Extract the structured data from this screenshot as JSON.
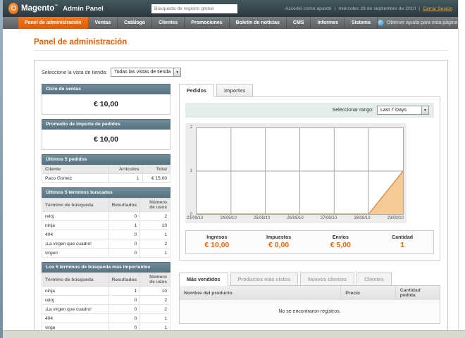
{
  "header": {
    "logo_text": "Magento",
    "logo_tm": "™",
    "logo_suffix": "Admin Panel",
    "search_placeholder": "Búsqueda de registro global",
    "logged_in": "Accedió como apardo",
    "sep": "|",
    "date": "miércoles 29 de septiembre de 2010",
    "logout": "Cerrar Sesión"
  },
  "nav": {
    "items": [
      "Panel de administración",
      "Ventas",
      "Catálogo",
      "Clientes",
      "Promociones",
      "Boletín de noticias",
      "CMS",
      "Informes",
      "Sistema"
    ],
    "active": "Panel de administración",
    "help": "Obtener ayuda para esta página"
  },
  "page": {
    "title": "Panel de administración"
  },
  "store_switcher": {
    "label": "Seleccione la vista de tienda:",
    "value": "Todas las vistas de tienda"
  },
  "sidebar": {
    "sales_box": {
      "title": "Ciclo de ventas",
      "value": "€ 10,00"
    },
    "avg_box": {
      "title": "Promedio de importe de pedidos",
      "value": "€ 10,00"
    },
    "last_orders": {
      "title": "Últimos 5 pedidos",
      "columns": [
        "Cliente",
        "Artículos",
        "Total"
      ],
      "rows": [
        [
          "Paco Gomez",
          "1",
          "€ 15,00"
        ]
      ]
    },
    "last_terms": {
      "title": "Últimos 5 términos buscados",
      "columns": [
        "Término de búsqueda",
        "Resultados",
        "Número de usos"
      ],
      "rows": [
        [
          "reloj",
          "0",
          "2"
        ],
        [
          "ninja",
          "1",
          "10"
        ],
        [
          "404",
          "0",
          "1"
        ],
        [
          "¡La virgen que cuadro!",
          "0",
          "2"
        ],
        [
          "virgen",
          "0",
          "1"
        ]
      ]
    },
    "top_terms": {
      "title": "Los 5 términos de búsqueda más importantes",
      "columns": [
        "Término de búsqueda",
        "Resultados",
        "Número de usos"
      ],
      "rows": [
        [
          "ninja",
          "1",
          "10"
        ],
        [
          "reloj",
          "0",
          "2"
        ],
        [
          "¡La virgen que cuadro!",
          "0",
          "2"
        ],
        [
          "404",
          "0",
          "1"
        ],
        [
          "virge",
          "0",
          "1"
        ]
      ]
    }
  },
  "dashboard": {
    "chart_tabs": [
      {
        "label": "Pedidos",
        "active": true,
        "enabled": true
      },
      {
        "label": "Importes",
        "active": false,
        "enabled": true
      }
    ],
    "range_label": "Seleccionar rango:",
    "range_value": "Last 7 Days",
    "totals": [
      {
        "label": "Ingresos",
        "value": "€ 10,00"
      },
      {
        "label": "Impuestos",
        "value": "€ 0,00"
      },
      {
        "label": "Envíos",
        "value": "€ 5,00"
      },
      {
        "label": "Cantidad",
        "value": "1"
      }
    ],
    "bottom_tabs": [
      {
        "label": "Más vendidos",
        "active": true,
        "enabled": true
      },
      {
        "label": "Productos más vistos",
        "active": false,
        "enabled": false
      },
      {
        "label": "Nuevos clientes",
        "active": false,
        "enabled": false
      },
      {
        "label": "Clientes",
        "active": false,
        "enabled": false
      }
    ],
    "products_table": {
      "columns": [
        "Nombre del producto",
        "Precio",
        "Cantidad pedida"
      ],
      "empty": "No se encontraron registros."
    }
  },
  "chart_data": {
    "type": "area",
    "title": "Pedidos",
    "x": [
      "23/09/10",
      "24/09/10",
      "25/09/10",
      "26/09/10",
      "27/09/10",
      "28/09/10",
      "29/09/10"
    ],
    "values": [
      0,
      0,
      0,
      0,
      0,
      0,
      1
    ],
    "ylim": [
      0,
      2
    ],
    "yticks": [
      0,
      1,
      2
    ],
    "grid": true,
    "legend": "none",
    "line_color": "#d No",
    "fill_color": "#f5ca96"
  },
  "colors": {
    "accent": "#eb5e00",
    "header_bg": "#33414b",
    "nav_active": "#e8640a",
    "box_header": "#65828e",
    "chart_line": "#d9822f",
    "chart_fill": "#f5ca96",
    "range_bar": "#e2edec"
  }
}
